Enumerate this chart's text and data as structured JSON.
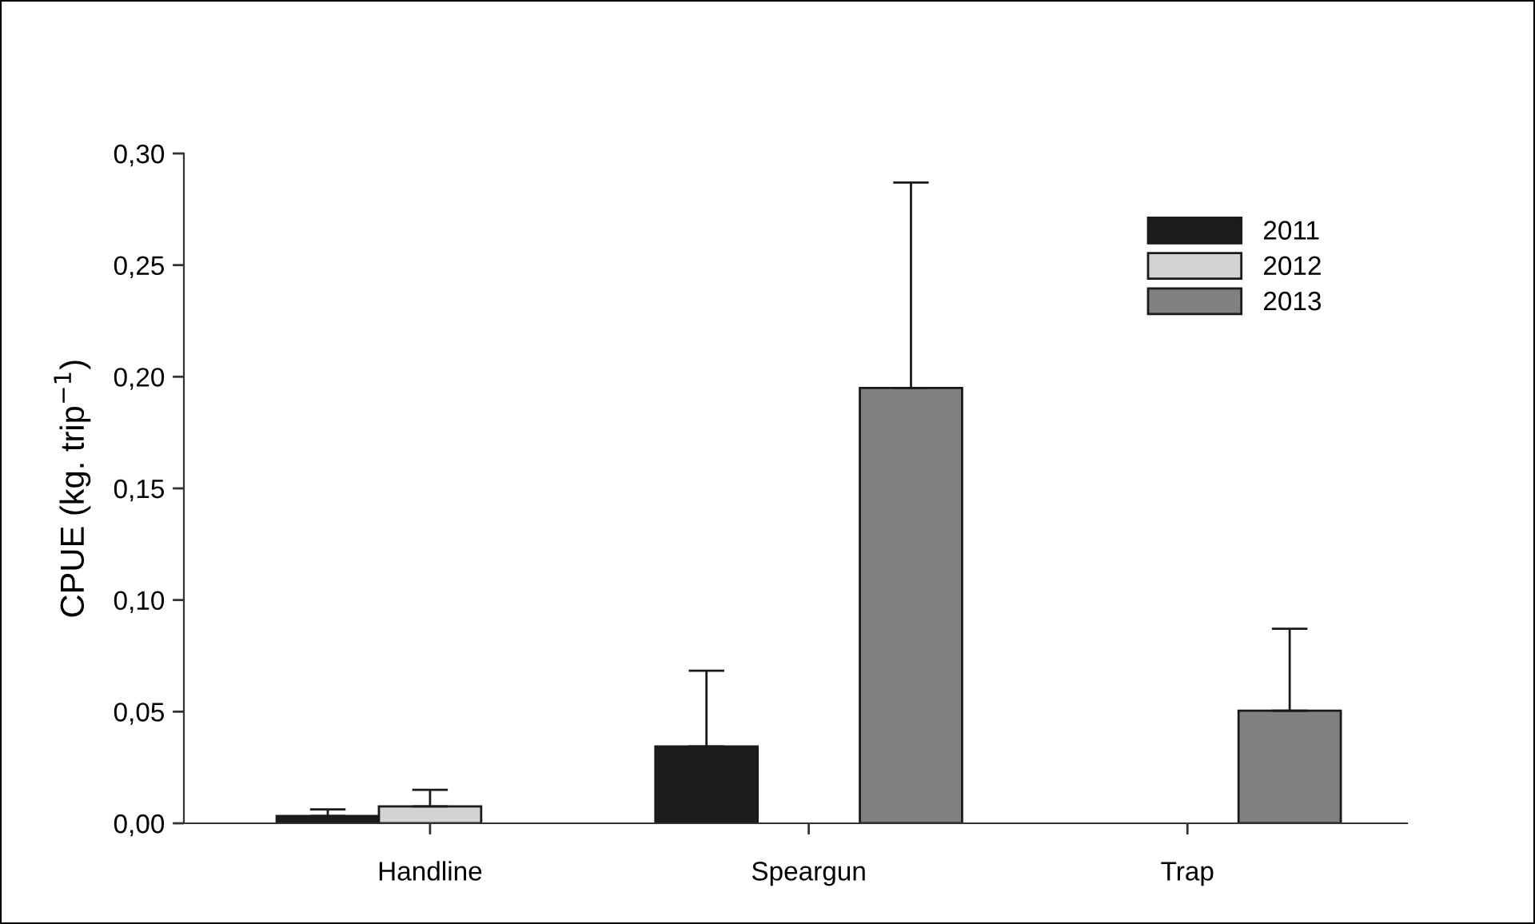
{
  "chart_data": {
    "type": "bar",
    "ylabel": "CPUE (kg. trip$^{−1}$)",
    "categories": [
      "Handline",
      "Speargun",
      "Trap"
    ],
    "series": [
      {
        "name": "2011",
        "color": "#1c1b1d",
        "values": [
          0.0033,
          0.0344,
          null
        ],
        "errors": [
          [
            0.0033,
            0.0062
          ],
          [
            0.0344,
            0.0683
          ],
          null
        ]
      },
      {
        "name": "2012",
        "color": "#d2d3d5",
        "values": [
          0.0076,
          null,
          null
        ],
        "errors": [
          [
            0.0076,
            0.015
          ],
          null,
          null
        ]
      },
      {
        "name": "2013",
        "color": "#808183",
        "values": [
          null,
          0.195,
          0.0504
        ],
        "errors": [
          null,
          [
            0.195,
            0.287
          ],
          [
            0.0504,
            0.0871
          ]
        ]
      }
    ],
    "ylim": [
      0,
      0.3
    ],
    "yticks": [
      {
        "value": 0,
        "label": "0,00"
      },
      {
        "value": 0.05,
        "label": "0,05"
      },
      {
        "value": 0.1,
        "label": "0,10"
      },
      {
        "value": 0.15,
        "label": "0,15"
      },
      {
        "value": 0.2,
        "label": "0,20"
      },
      {
        "value": 0.25,
        "label": "0,25"
      },
      {
        "value": 0.3,
        "label": "0,30"
      }
    ],
    "legend": "top right",
    "grid": false
  }
}
